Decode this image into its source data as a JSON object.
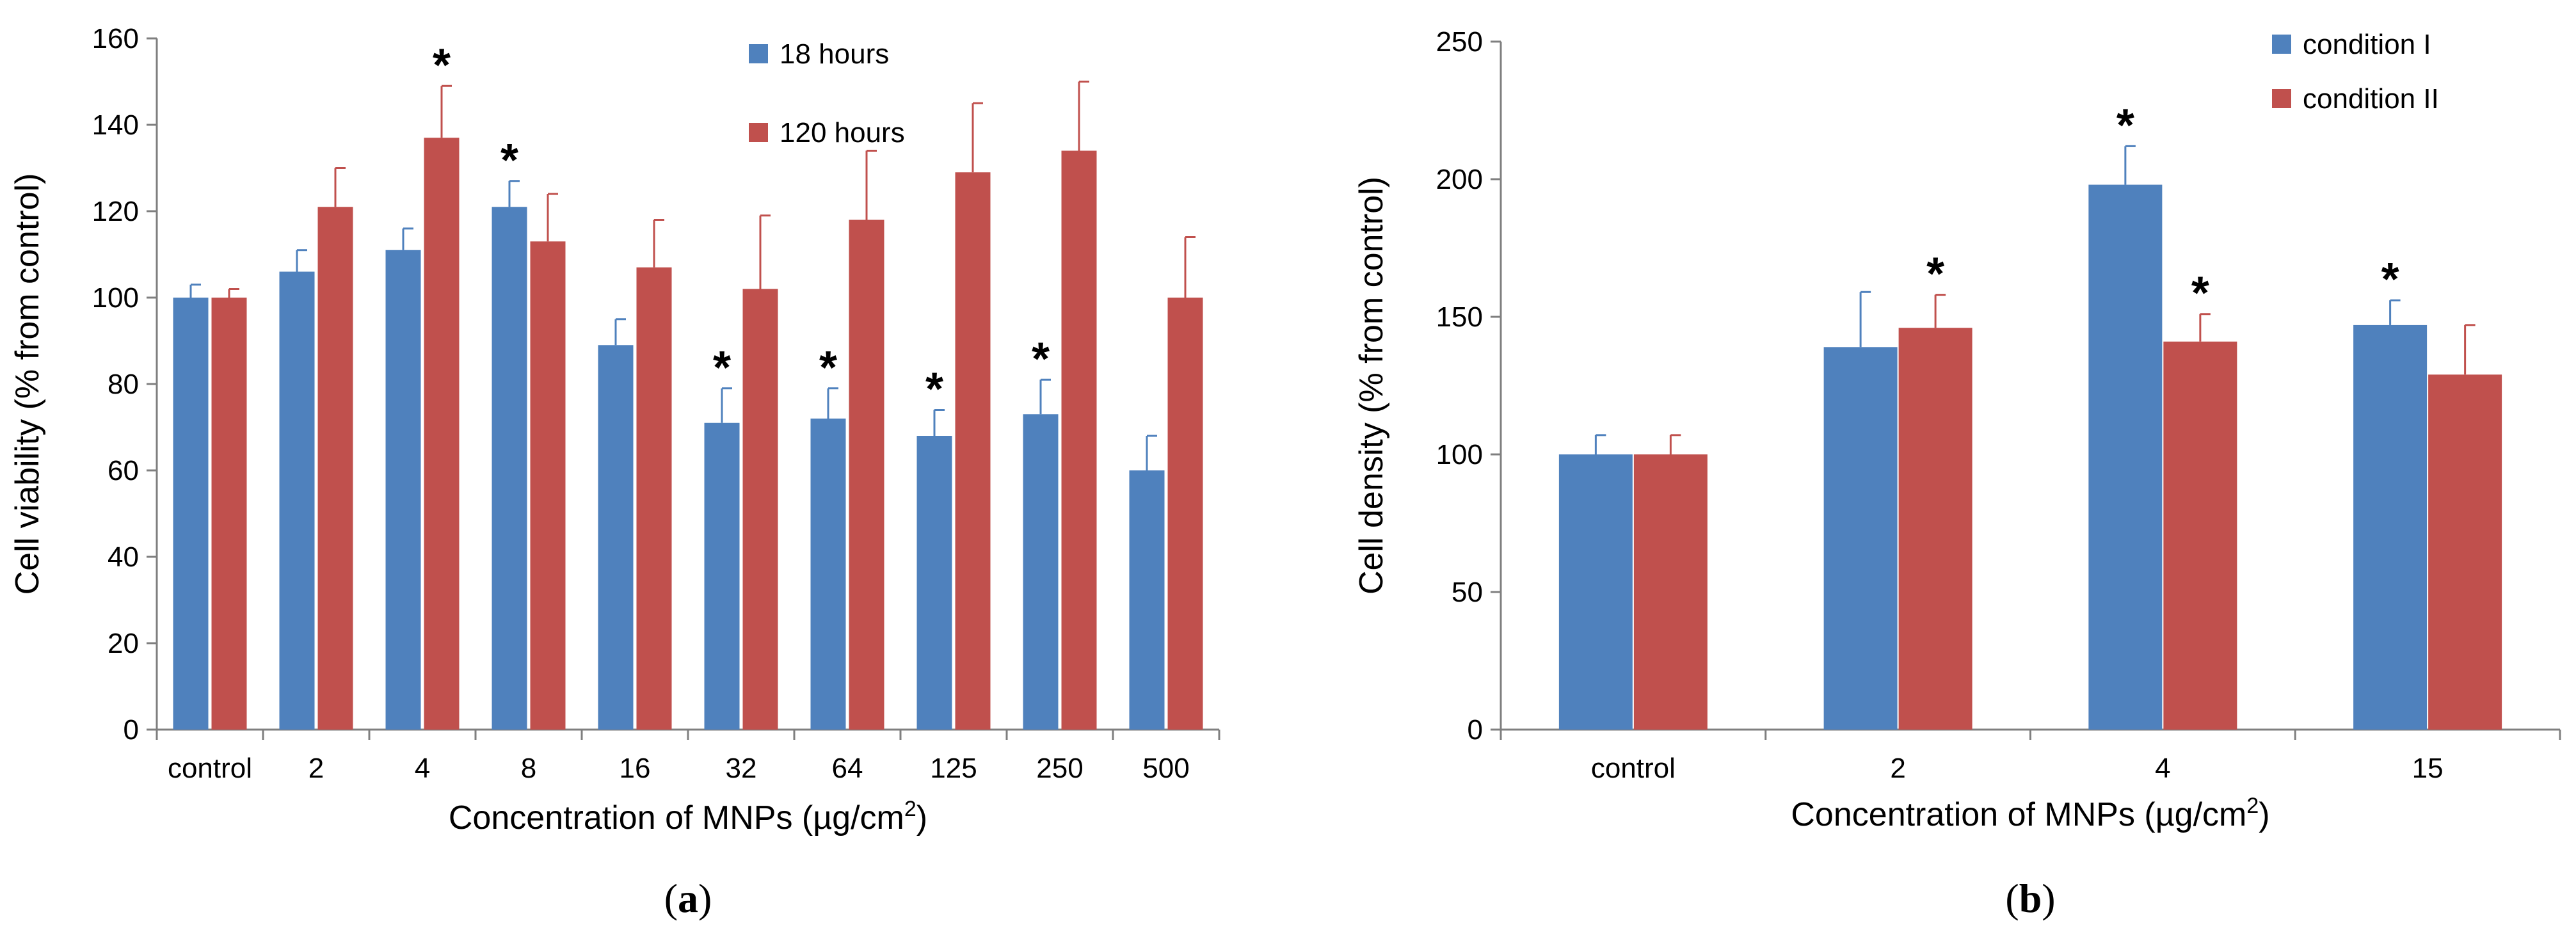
{
  "chart_data": [
    {
      "type": "bar",
      "categories": [
        "control",
        "2",
        "4",
        "8",
        "16",
        "32",
        "64",
        "125",
        "250",
        "500"
      ],
      "series": [
        {
          "name": "18 hours",
          "color": "#4F81BD",
          "values": [
            100,
            106,
            111,
            121,
            89,
            71,
            72,
            68,
            73,
            60
          ],
          "errors": [
            3,
            5,
            5,
            6,
            6,
            8,
            7,
            6,
            8,
            8
          ],
          "significant": [
            false,
            false,
            false,
            true,
            false,
            true,
            true,
            true,
            true,
            false
          ]
        },
        {
          "name": "120 hours",
          "color": "#C0504D",
          "values": [
            100,
            121,
            137,
            113,
            107,
            102,
            118,
            129,
            134,
            100
          ],
          "errors": [
            2,
            9,
            12,
            11,
            11,
            17,
            16,
            16,
            16,
            14
          ],
          "significant": [
            false,
            false,
            true,
            false,
            false,
            false,
            false,
            false,
            false,
            false
          ]
        }
      ],
      "title": "",
      "xlabel_prefix": "Concentration of MNPs (µg/cm",
      "xlabel_sup": "2",
      "xlabel_suffix": ")",
      "ylabel": "Cell viability (% from control)",
      "ylim": [
        0,
        160
      ],
      "yticks": [
        0,
        20,
        40,
        60,
        80,
        100,
        120,
        140,
        160
      ],
      "significance_marker": "*",
      "legend": "top-right",
      "panel_open": "(",
      "panel_letter": "a",
      "panel_close": ")"
    },
    {
      "type": "bar",
      "categories": [
        "control",
        "2",
        "4",
        "15"
      ],
      "series": [
        {
          "name": "condition I",
          "color": "#4F81BD",
          "values": [
            100,
            139,
            198,
            147
          ],
          "errors": [
            7,
            20,
            14,
            9
          ],
          "significant": [
            false,
            false,
            true,
            true
          ]
        },
        {
          "name": "condition II",
          "color": "#C0504D",
          "values": [
            100,
            146,
            141,
            129
          ],
          "errors": [
            7,
            12,
            10,
            18
          ],
          "significant": [
            false,
            true,
            true,
            false
          ]
        }
      ],
      "title": "",
      "xlabel_prefix": "Concentration of MNPs (µg/cm",
      "xlabel_sup": "2",
      "xlabel_suffix": ")",
      "ylabel": "Cell density (% from control)",
      "ylim": [
        0,
        250
      ],
      "yticks": [
        0,
        50,
        100,
        150,
        200,
        250
      ],
      "significance_marker": "*",
      "legend": "top-right",
      "panel_open": "(",
      "panel_letter": "b",
      "panel_close": ")"
    }
  ]
}
